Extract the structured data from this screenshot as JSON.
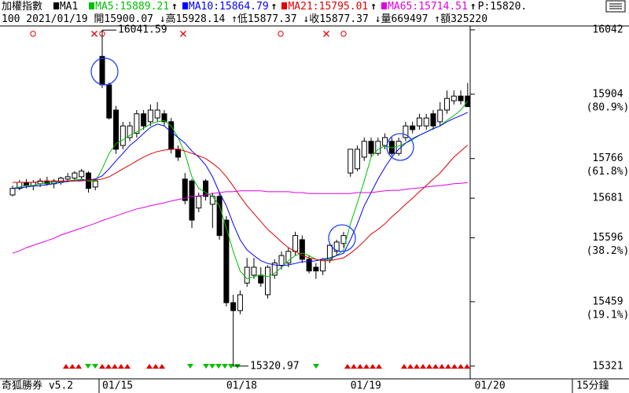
{
  "header": {
    "name": "加權指數",
    "ma1": "MA1",
    "p": "P:15820.",
    "quote": "100 2021/01/19 開15900.07 ↓高15928.14 ↑低15877.37 ↓收15877.37 ↓量669497 ↑額325220"
  },
  "footer": {
    "brand": "奇狐勝券 v5.2",
    "period": "15分鐘"
  },
  "chart_data": {
    "type": "candlestick",
    "categories": [
      null,
      null,
      null,
      null,
      null,
      null,
      null,
      null,
      null,
      null,
      null,
      null,
      null,
      "01/15",
      null,
      null,
      null,
      null,
      null,
      null,
      null,
      null,
      null,
      null,
      null,
      null,
      null,
      null,
      null,
      null,
      null,
      "01/18",
      null,
      null,
      null,
      null,
      null,
      null,
      null,
      null,
      null,
      null,
      null,
      null,
      null,
      null,
      null,
      null,
      null,
      "01/19",
      null,
      null,
      null,
      null,
      null,
      null,
      null,
      null,
      null,
      null,
      null,
      null,
      null,
      null,
      null,
      null,
      null,
      "01/20"
    ],
    "open": [
      15688,
      15702,
      15715,
      15708,
      15712,
      15718,
      15712,
      15715,
      15722,
      15724,
      15727,
      15735,
      15705,
      15985,
      15924,
      15870,
      15794,
      15811,
      15820,
      15862,
      15845,
      15853,
      15862,
      15845,
      15786,
      15722,
      15718,
      15660,
      15718,
      15668,
      15685,
      15634,
      15457,
      15440,
      15499,
      15516,
      15516,
      15474,
      15516,
      15537,
      15542,
      15567,
      15592,
      15550,
      15533,
      15525,
      15550,
      15567,
      15584,
      15735,
      15744,
      15769,
      15803,
      15777,
      15794,
      15803,
      15777,
      15811,
      15836,
      15836,
      15836,
      15862,
      15845,
      15870,
      15890,
      15900,
      15900.07,
      null
    ],
    "high": [
      15708,
      15720,
      15722,
      15720,
      15724,
      15727,
      15722,
      15727,
      15735,
      15739,
      15744,
      15739,
      15722,
      16041.59,
      15929,
      15879,
      15845,
      15845,
      15870,
      15870,
      15882,
      15887,
      15870,
      15853,
      15794,
      15735,
      15722,
      15693,
      15722,
      15693,
      15693,
      15643,
      15474,
      15483,
      15553,
      15553,
      15533,
      15537,
      15550,
      15567,
      15575,
      15609,
      15601,
      15558,
      15542,
      15553,
      15584,
      15592,
      15609,
      15786,
      15794,
      15811,
      15811,
      15811,
      15820,
      15811,
      15811,
      15845,
      15845,
      15862,
      15862,
      15870,
      15887,
      15912,
      15912,
      15912,
      15928.14,
      null
    ],
    "low": [
      15685,
      15698,
      15702,
      15698,
      15705,
      15708,
      15702,
      15710,
      15715,
      15718,
      15722,
      15693,
      15698,
      15917,
      15850,
      15776,
      15786,
      15803,
      15811,
      15828,
      15836,
      15845,
      15836,
      15777,
      15761,
      15668,
      15617,
      15651,
      15676,
      15617,
      15592,
      15449,
      15320.97,
      15432,
      15491,
      15508,
      15491,
      15466,
      15508,
      15528,
      15533,
      15558,
      15542,
      15520,
      15508,
      15516,
      15542,
      15558,
      15575,
      15727,
      15739,
      15761,
      15769,
      15772,
      15786,
      15772,
      15772,
      15803,
      15820,
      15828,
      15828,
      15828,
      15836,
      15862,
      15882,
      15882,
      15877.37,
      null
    ],
    "close": [
      15702,
      15715,
      15708,
      15715,
      15718,
      15712,
      15718,
      15724,
      15727,
      15735,
      15739,
      15702,
      15718,
      15924,
      15853,
      15786,
      15836,
      15836,
      15862,
      15836,
      15870,
      15870,
      15845,
      15786,
      15769,
      15676,
      15634,
      15685,
      15685,
      15685,
      15601,
      15457,
      15440,
      15474,
      15533,
      15533,
      15499,
      15533,
      15542,
      15558,
      15567,
      15601,
      15550,
      15525,
      15525,
      15550,
      15580,
      15587,
      15601,
      15786,
      15786,
      15803,
      15777,
      15803,
      15811,
      15777,
      15803,
      15836,
      15828,
      15853,
      15853,
      15836,
      15870,
      15895,
      15900,
      15890,
      15877.37,
      null
    ],
    "series": [
      {
        "name": "MA5:15889.21",
        "color": "#00c000",
        "trend": "↑",
        "values": [
          15702,
          15705,
          15708,
          15708,
          15712,
          15713,
          15715,
          15717,
          15718,
          15720,
          15722,
          15718,
          15717,
          15744,
          15777,
          15798,
          15806,
          15816,
          15823,
          15831,
          15840,
          15845,
          15848,
          15836,
          15811,
          15777,
          15727,
          15702,
          15693,
          15685,
          15665,
          15617,
          15567,
          15525,
          15508,
          15513,
          15516,
          15513,
          15520,
          15533,
          15547,
          15558,
          15563,
          15558,
          15550,
          15547,
          15550,
          15558,
          15570,
          15626,
          15671,
          15718,
          15769,
          15786,
          15793,
          15789,
          15793,
          15799,
          15806,
          15816,
          15823,
          15831,
          15836,
          15848,
          15858,
          15870,
          15889.21,
          null
        ]
      },
      {
        "name": "MA10:15864.79",
        "color": "#0000ff",
        "trend": "↑",
        "values": [
          15702,
          15703,
          15705,
          15707,
          15708,
          15710,
          15712,
          15715,
          15717,
          15718,
          15720,
          15720,
          15722,
          15729,
          15744,
          15761,
          15777,
          15794,
          15806,
          15820,
          15833,
          15840,
          15836,
          15823,
          15811,
          15799,
          15782,
          15769,
          15752,
          15727,
          15693,
          15665,
          15626,
          15592,
          15570,
          15558,
          15547,
          15541,
          15538,
          15536,
          15538,
          15541,
          15545,
          15545,
          15547,
          15550,
          15553,
          15558,
          15563,
          15592,
          15626,
          15665,
          15693,
          15722,
          15747,
          15769,
          15786,
          15799,
          15809,
          15816,
          15823,
          15830,
          15836,
          15845,
          15852,
          15858,
          15864.79,
          null
        ]
      },
      {
        "name": "MA21:15795.01",
        "color": "#e00000",
        "trend": "↑",
        "values": [
          15715,
          15715,
          15715,
          15715,
          15717,
          15717,
          15717,
          15718,
          15718,
          15718,
          15718,
          15720,
          15720,
          15722,
          15727,
          15735,
          15744,
          15752,
          15761,
          15769,
          15776,
          15781,
          15784,
          15786,
          15786,
          15782,
          15777,
          15772,
          15766,
          15756,
          15744,
          15727,
          15707,
          15685,
          15665,
          15648,
          15631,
          15614,
          15601,
          15587,
          15575,
          15567,
          15558,
          15553,
          15550,
          15547,
          15547,
          15550,
          15553,
          15563,
          15575,
          15589,
          15604,
          15614,
          15626,
          15641,
          15654,
          15668,
          15681,
          15695,
          15708,
          15722,
          15735,
          15752,
          15769,
          15782,
          15795.01,
          null
        ]
      },
      {
        "name": "MA65:15714.51",
        "color": "#e000e0",
        "trend": "↑",
        "values": [
          15563,
          15568,
          15575,
          15580,
          15585,
          15590,
          15595,
          15602,
          15607,
          15612,
          15617,
          15622,
          15627,
          15633,
          15638,
          15643,
          15648,
          15653,
          15658,
          15661,
          15665,
          15668,
          15671,
          15675,
          15678,
          15681,
          15685,
          15686,
          15688,
          15691,
          15693,
          15695,
          15695,
          15697,
          15697,
          15697,
          15697,
          15695,
          15695,
          15695,
          15695,
          15693,
          15693,
          15691,
          15691,
          15691,
          15691,
          15691,
          15691,
          15691,
          15693,
          15693,
          15693,
          15695,
          15697,
          15698,
          15698,
          15700,
          15702,
          15703,
          15705,
          15707,
          15708,
          15710,
          15712,
          15713,
          15714.51,
          null
        ]
      }
    ],
    "ylim": [
      15297,
      16047
    ],
    "yticks": [
      16042,
      15904,
      15766,
      15681,
      15596,
      15459,
      15321
    ],
    "ytick_notes": [
      null,
      "(80.9%)",
      "(61.8%)",
      null,
      "(38.2%)",
      "(19.1%)",
      null
    ]
  }
}
